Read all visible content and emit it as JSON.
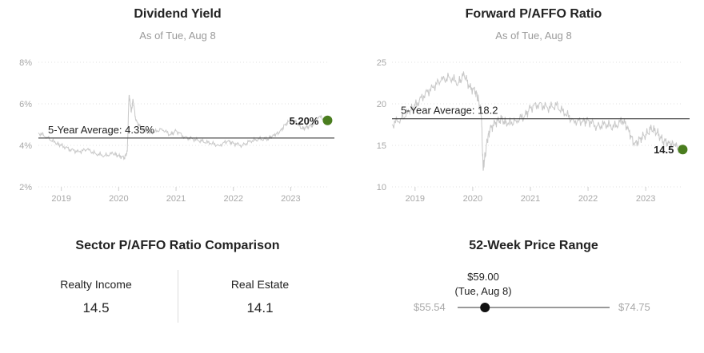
{
  "dividend_yield": {
    "title": "Dividend Yield",
    "subtitle": "As of Tue, Aug 8",
    "y_ticks": [
      "2%",
      "4%",
      "6%",
      "8%"
    ],
    "x_ticks": [
      "2019",
      "2020",
      "2021",
      "2022",
      "2023"
    ],
    "average_label": "5-Year Average: 4.35%",
    "last_label": "5.20%",
    "line_color": "#c8c8c8",
    "marker_color": "#4a7d1f"
  },
  "forward_pa": {
    "title": "Forward P/AFFO Ratio",
    "subtitle": "As of Tue, Aug 8",
    "y_ticks": [
      "10",
      "15",
      "20",
      "25"
    ],
    "x_ticks": [
      "2019",
      "2020",
      "2021",
      "2022",
      "2023"
    ],
    "average_label": "5-Year Average: 18.2",
    "last_label": "14.5",
    "line_color": "#c8c8c8",
    "marker_color": "#4a7d1f"
  },
  "chart_data": [
    {
      "type": "line",
      "title": "Dividend Yield",
      "subtitle": "As of Tue, Aug 8",
      "xlabel": "",
      "ylabel": "",
      "ylim": [
        2,
        8
      ],
      "xlim": [
        2018.6,
        2023.65
      ],
      "y_ticks": [
        2,
        4,
        6,
        8
      ],
      "x_ticks": [
        2019,
        2020,
        2021,
        2022,
        2023
      ],
      "grid": "horizontal dotted",
      "average": 4.35,
      "last_value": 5.2,
      "x": [
        2018.6,
        2018.75,
        2018.9,
        2019.0,
        2019.15,
        2019.3,
        2019.45,
        2019.6,
        2019.75,
        2019.9,
        2020.0,
        2020.1,
        2020.15,
        2020.18,
        2020.2,
        2020.22,
        2020.25,
        2020.3,
        2020.4,
        2020.5,
        2020.6,
        2020.75,
        2020.9,
        2021.0,
        2021.15,
        2021.3,
        2021.45,
        2021.6,
        2021.75,
        2021.9,
        2022.0,
        2022.15,
        2022.3,
        2022.45,
        2022.6,
        2022.7,
        2022.8,
        2022.9,
        2023.0,
        2023.1,
        2023.2,
        2023.3,
        2023.4,
        2023.5,
        2023.6
      ],
      "y": [
        4.6,
        4.4,
        4.1,
        4.0,
        3.8,
        3.7,
        3.8,
        3.6,
        3.5,
        3.6,
        3.5,
        3.4,
        3.7,
        6.4,
        6.1,
        5.6,
        6.2,
        5.2,
        4.8,
        4.7,
        4.6,
        4.8,
        4.5,
        4.7,
        4.4,
        4.3,
        4.2,
        4.1,
        4.0,
        4.2,
        4.1,
        4.0,
        4.2,
        4.3,
        4.3,
        4.5,
        4.6,
        5.0,
        5.2,
        5.1,
        4.8,
        4.9,
        5.0,
        5.4,
        5.2
      ]
    },
    {
      "type": "line",
      "title": "Forward P/AFFO Ratio",
      "subtitle": "As of Tue, Aug 8",
      "xlabel": "",
      "ylabel": "",
      "ylim": [
        10,
        25
      ],
      "xlim": [
        2018.6,
        2023.65
      ],
      "y_ticks": [
        10,
        15,
        20,
        25
      ],
      "x_ticks": [
        2019,
        2020,
        2021,
        2022,
        2023
      ],
      "grid": "horizontal dotted",
      "average": 18.2,
      "last_value": 14.5,
      "x": [
        2018.6,
        2018.75,
        2018.9,
        2019.0,
        2019.15,
        2019.3,
        2019.45,
        2019.6,
        2019.75,
        2019.85,
        2019.95,
        2020.05,
        2020.1,
        2020.15,
        2020.18,
        2020.2,
        2020.25,
        2020.3,
        2020.4,
        2020.5,
        2020.6,
        2020.75,
        2020.9,
        2021.0,
        2021.15,
        2021.3,
        2021.45,
        2021.6,
        2021.75,
        2021.9,
        2022.0,
        2022.15,
        2022.3,
        2022.45,
        2022.6,
        2022.7,
        2022.8,
        2022.9,
        2023.0,
        2023.1,
        2023.2,
        2023.3,
        2023.4,
        2023.5,
        2023.6
      ],
      "y": [
        17.5,
        18.2,
        19.0,
        19.8,
        21.0,
        22.0,
        22.8,
        23.2,
        22.5,
        23.5,
        22.0,
        21.5,
        20.5,
        18.5,
        12.2,
        13.0,
        15.5,
        17.0,
        17.8,
        18.2,
        17.5,
        18.0,
        18.5,
        19.5,
        20.0,
        19.5,
        19.8,
        18.8,
        18.0,
        17.8,
        18.0,
        17.3,
        17.5,
        17.2,
        18.0,
        17.0,
        15.0,
        15.8,
        16.3,
        17.0,
        16.5,
        15.5,
        15.3,
        15.0,
        14.5
      ]
    },
    {
      "type": "table",
      "title": "Sector P/AFFO Ratio Comparison",
      "columns": [
        "Realty Income",
        "Real Estate"
      ],
      "values": [
        14.5,
        14.1
      ]
    }
  ],
  "sector": {
    "title": "Sector P/AFFO Ratio Comparison",
    "left_label": "Realty Income",
    "left_value": "14.5",
    "right_label": "Real Estate",
    "right_value": "14.1"
  },
  "range": {
    "title": "52-Week Price Range",
    "low": "$55.54",
    "high": "$74.75",
    "current_price": "$59.00",
    "current_date": "(Tue, Aug 8)",
    "low_value": 55.54,
    "high_value": 74.75,
    "current_value": 59.0
  }
}
